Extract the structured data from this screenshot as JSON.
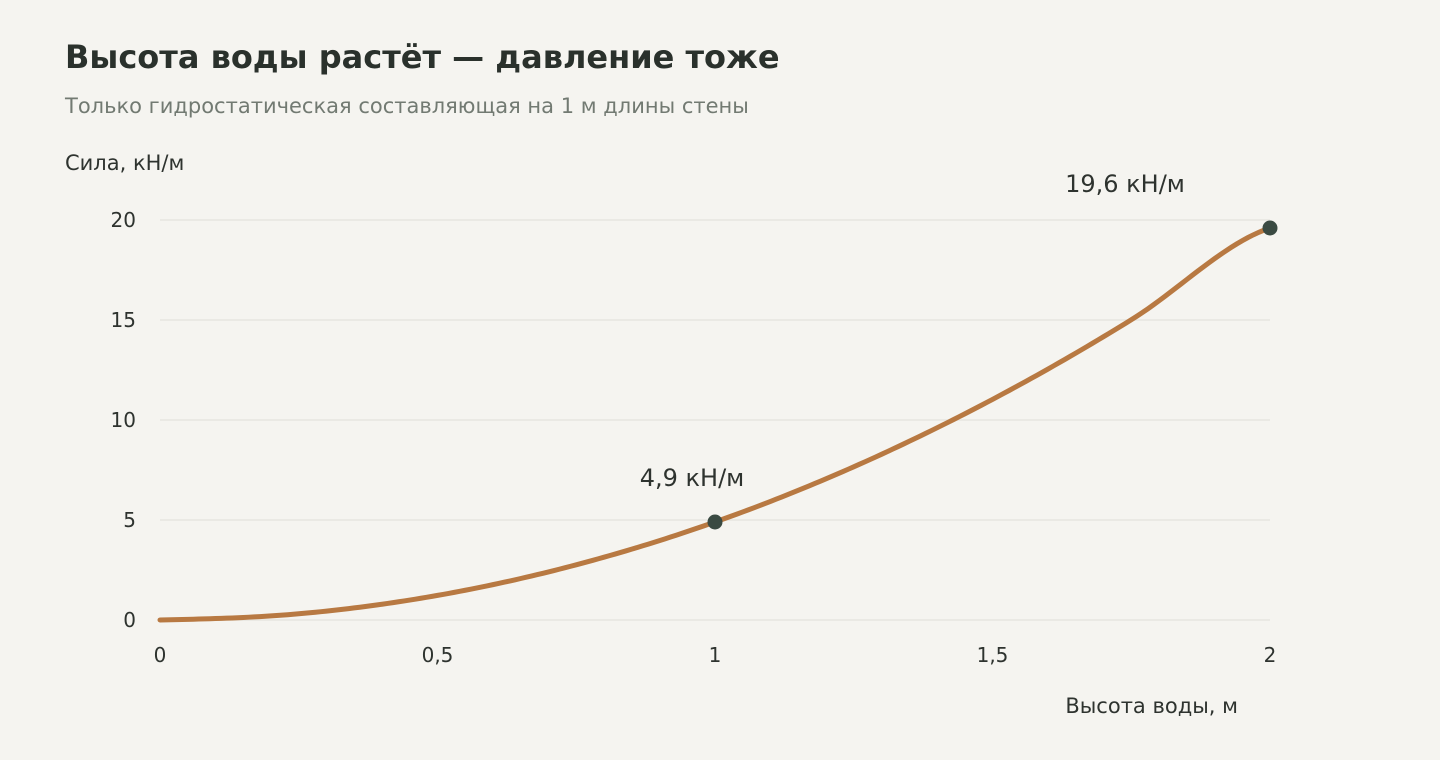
{
  "header": {
    "title": "Высота воды растёт — давление тоже",
    "subtitle": "Только гидростатическая составляющая на 1 м длины стены"
  },
  "colors": {
    "background": "#f5f4f0",
    "line": "#b87942",
    "marker": "#3a4a42",
    "grid": "#e6e5e0",
    "text": "#2b302c",
    "subtitle": "#727a72"
  },
  "chart_data": {
    "type": "line",
    "title": "Высота воды растёт — давление тоже",
    "subtitle": "Только гидростатическая составляющая на 1 м длины стены",
    "xlabel": "Высота воды, м",
    "ylabel": "Сила, кН/м",
    "xlim": [
      0,
      2
    ],
    "ylim": [
      0,
      20
    ],
    "grid": "horizontal",
    "x_ticks": [
      0,
      0.5,
      1,
      1.5,
      2
    ],
    "x_tick_labels": [
      "0",
      "0,5",
      "1",
      "1,5",
      "2"
    ],
    "y_ticks": [
      0,
      5,
      10,
      15,
      20
    ],
    "y_tick_labels": [
      "0",
      "5",
      "10",
      "15",
      "20"
    ],
    "series": [
      {
        "x": [
          0,
          0.25,
          0.5,
          0.75,
          1,
          1.25,
          1.5,
          1.75,
          2
        ],
        "y": [
          0,
          0.31,
          1.23,
          2.76,
          4.9,
          7.66,
          11.03,
          15.01,
          19.6
        ]
      }
    ],
    "markers": [
      {
        "x": 1,
        "y": 4.9,
        "label": "4,9 кН/м"
      },
      {
        "x": 2,
        "y": 19.6,
        "label": "19,6 кН/м"
      }
    ]
  }
}
